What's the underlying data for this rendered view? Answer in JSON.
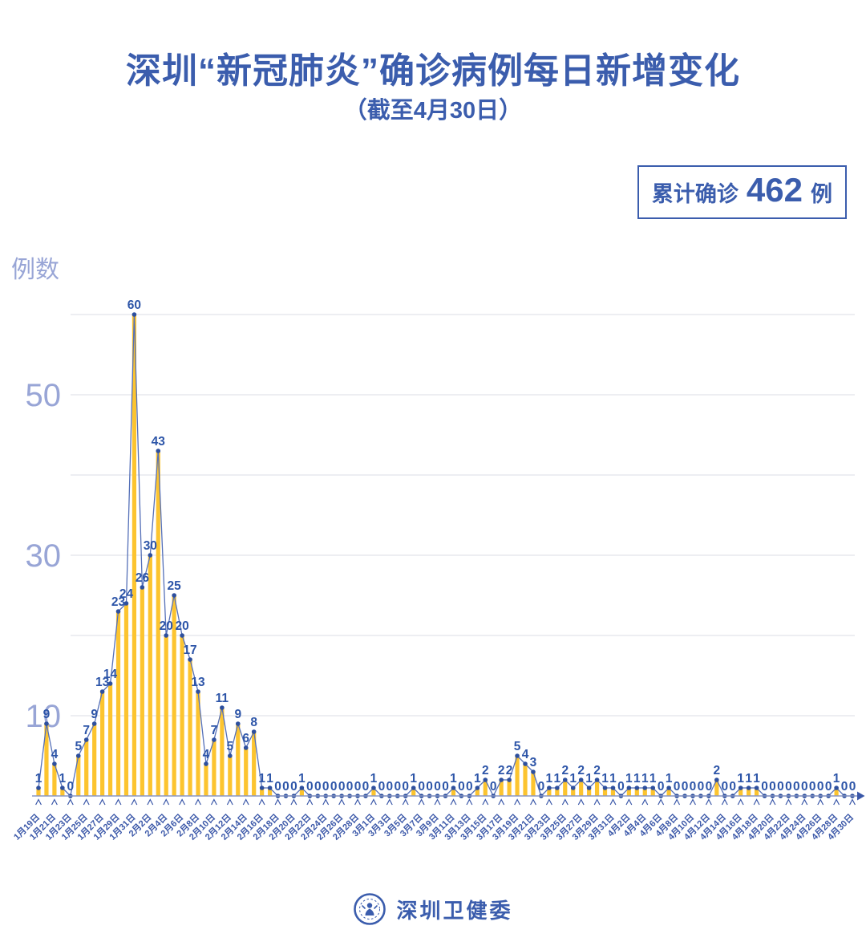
{
  "title": "深圳“新冠肺炎”确诊病例每日新增变化",
  "subtitle": "（截至4月30日）",
  "badge": {
    "prefix": "累计确诊",
    "value": "462",
    "suffix": "例"
  },
  "footer": {
    "org": "深圳卫健委"
  },
  "colors": {
    "accent": "#3B5DAD"
  },
  "chart_data": {
    "type": "bar",
    "title": "深圳“新冠肺炎”确诊病例每日新增变化（截至4月30日）",
    "ylabel": "例数",
    "xlabel": "",
    "ylim": [
      0,
      62
    ],
    "grid": true,
    "gridline_step": 10,
    "yticks_labeled": [
      10,
      30,
      50
    ],
    "x_label_every": 2,
    "x_labels": [
      "1月19日",
      "1月21日",
      "1月23日",
      "1月25日",
      "1月27日",
      "1月29日",
      "1月31日",
      "2月2日",
      "2月4日",
      "2月6日",
      "2月8日",
      "2月10日",
      "2月12日",
      "2月14日",
      "2月16日",
      "2月18日",
      "2月20日",
      "2月22日",
      "2月24日",
      "2月26日",
      "2月28日",
      "3月1日",
      "3月3日",
      "3月5日",
      "3月7日",
      "3月9日",
      "3月11日",
      "3月13日",
      "3月15日",
      "3月17日",
      "3月19日",
      "3月21日",
      "3月23日",
      "3月25日",
      "3月27日",
      "3月29日",
      "3月31日",
      "4月2日",
      "4月4日",
      "4月6日",
      "4月8日",
      "4月10日",
      "4月12日",
      "4月14日",
      "4月16日",
      "4月18日",
      "4月20日",
      "4月22日",
      "4月24日",
      "4月26日",
      "4月28日",
      "4月30日"
    ],
    "values": [
      1,
      9,
      4,
      1,
      0,
      5,
      7,
      9,
      13,
      14,
      23,
      24,
      60,
      26,
      30,
      43,
      20,
      25,
      20,
      17,
      13,
      4,
      7,
      11,
      5,
      9,
      6,
      8,
      1,
      1,
      0,
      0,
      0,
      1,
      0,
      0,
      0,
      0,
      0,
      0,
      0,
      0,
      1,
      0,
      0,
      0,
      0,
      1,
      0,
      0,
      0,
      0,
      1,
      0,
      0,
      1,
      2,
      0,
      2,
      2,
      5,
      4,
      3,
      0,
      1,
      1,
      2,
      1,
      2,
      1,
      2,
      1,
      1,
      0,
      1,
      1,
      1,
      1,
      0,
      1,
      0,
      0,
      0,
      0,
      0,
      2,
      0,
      0,
      1,
      1,
      1,
      0,
      0,
      0,
      0,
      0,
      0,
      0,
      0,
      0,
      1,
      0,
      0
    ],
    "total": 462,
    "colors": {
      "bar": "#FCC42F",
      "line": "#5570B8",
      "dot": "#2D4F9E",
      "value_label": "#2D55A8",
      "axis": "#8A97C4",
      "axis_dark": "#3A57A8",
      "axis_label": "#3A57A8",
      "ytick": "#98A5D6",
      "gridline": "#E2E3E9"
    }
  }
}
